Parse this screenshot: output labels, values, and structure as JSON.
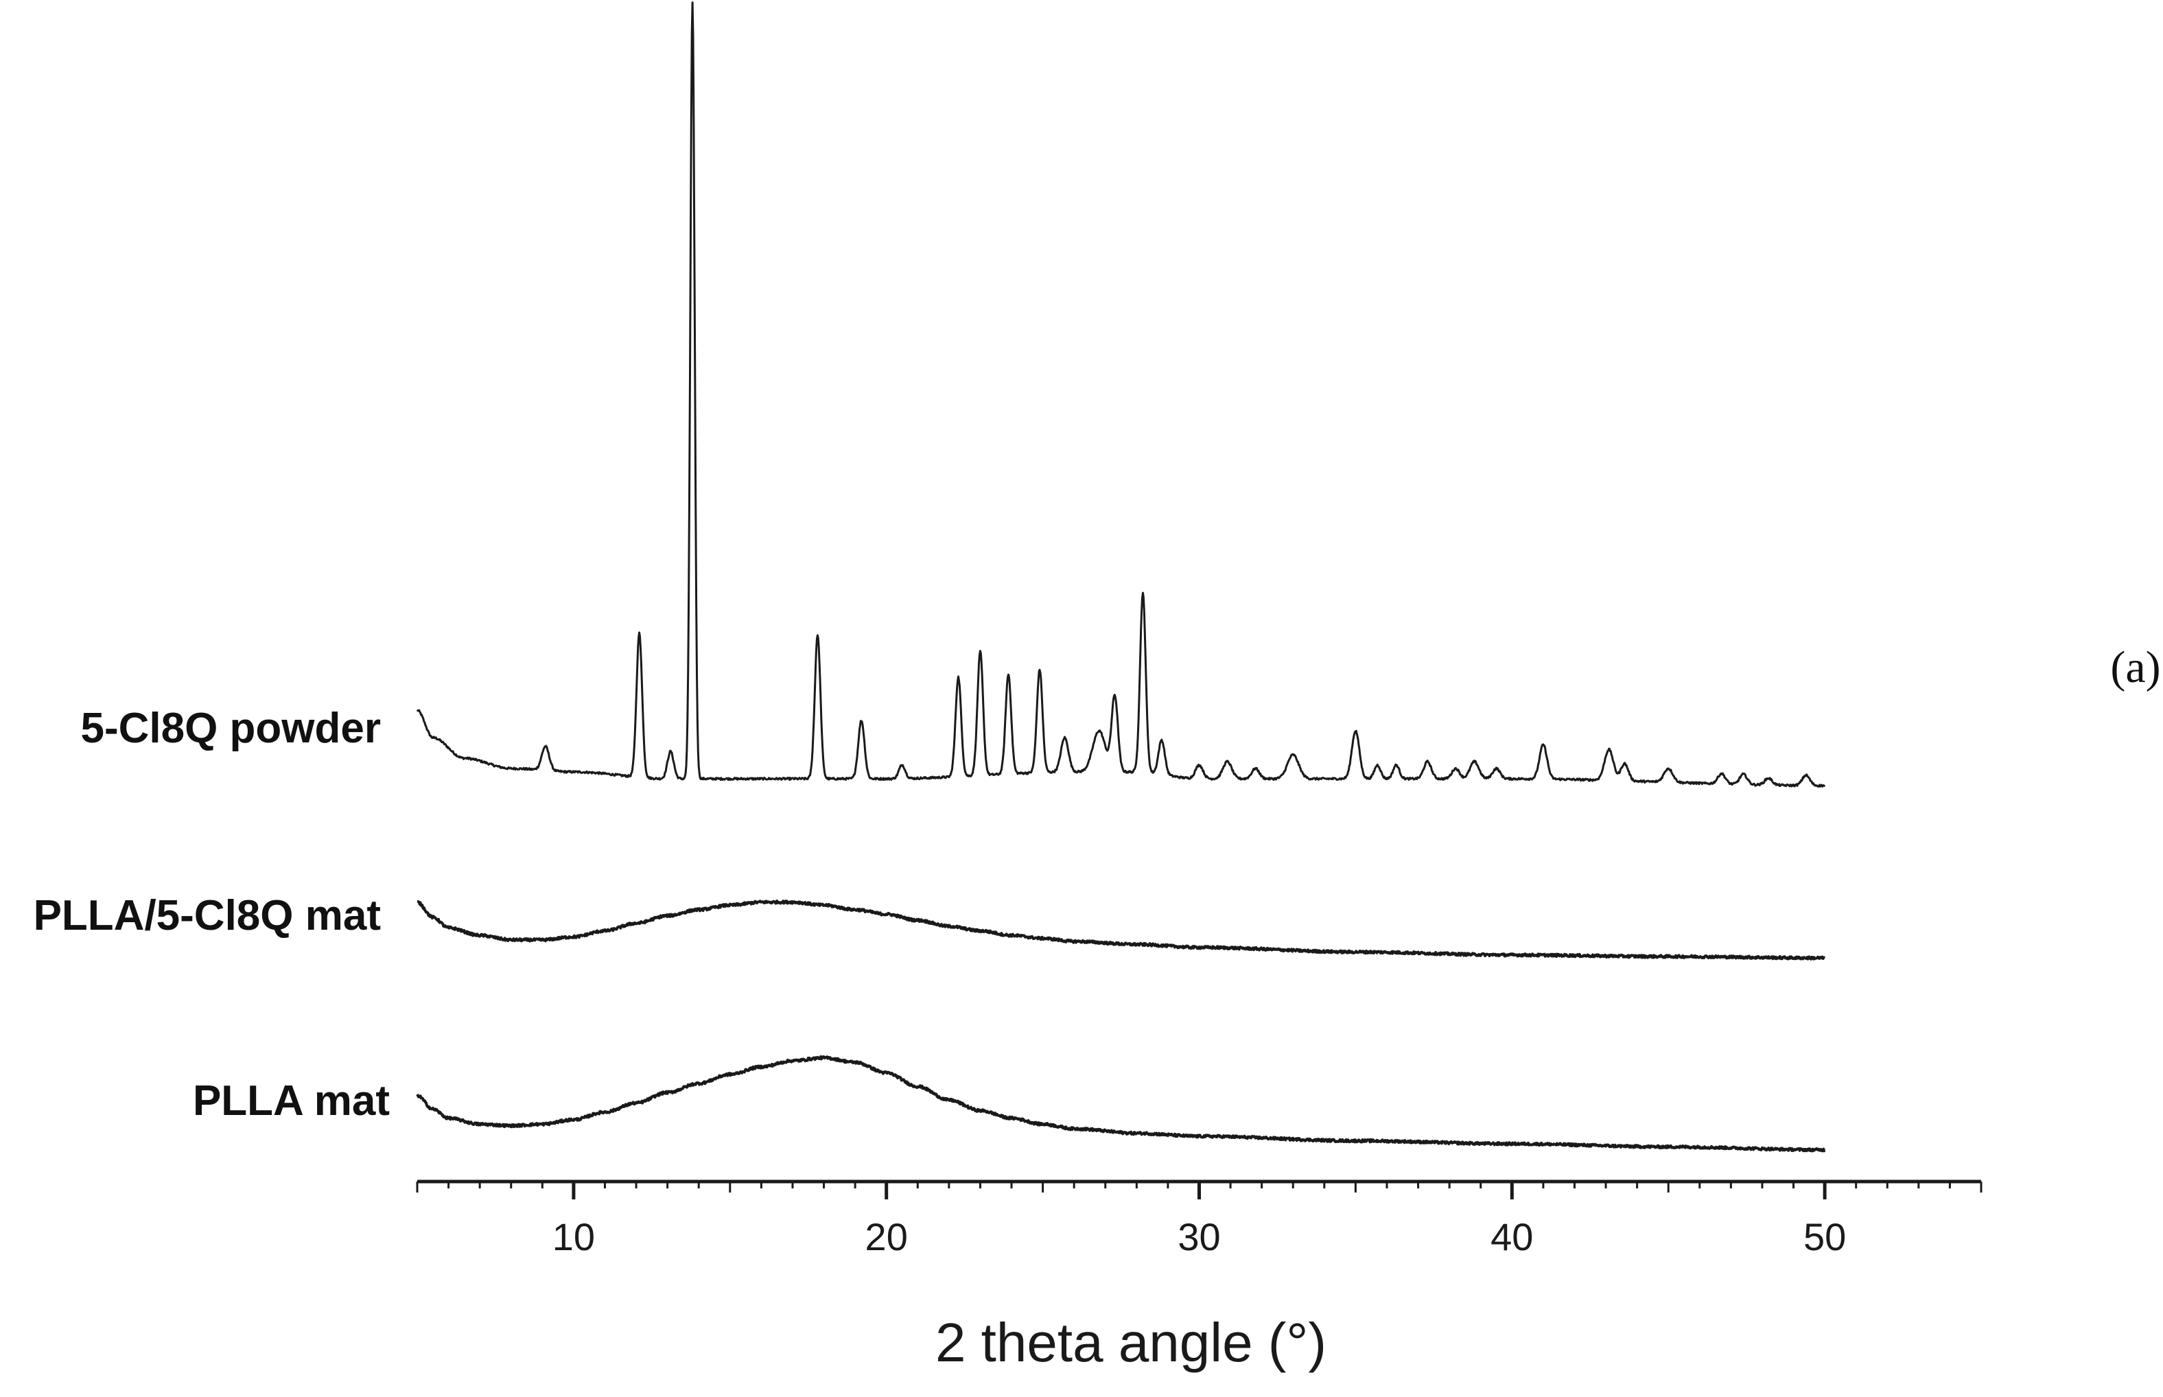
{
  "chart_data": {
    "type": "line",
    "panel_label": "(a)",
    "xlabel": "2 theta angle (°)",
    "xlim": [
      5,
      55
    ],
    "xticks": [
      10,
      20,
      30,
      40,
      50
    ],
    "grid": false,
    "y_axis_shown": false,
    "y_scale": "relative intensity (stacked, arbitrary units)",
    "series": [
      {
        "name": "5-Cl8Q powder",
        "x_range": [
          5,
          50
        ],
        "baseline": [
          [
            5,
            0.2
          ],
          [
            5.5,
            0.12
          ],
          [
            6.5,
            0.06
          ],
          [
            8,
            0.03
          ],
          [
            10,
            0.02
          ],
          [
            13,
            0.0
          ],
          [
            20,
            0.0
          ],
          [
            26,
            0.02
          ],
          [
            28,
            0.02
          ],
          [
            30,
            0.0
          ],
          [
            40,
            0.0
          ],
          [
            50,
            -0.02
          ]
        ],
        "peaks": [
          {
            "x": 9.1,
            "h": 0.07,
            "w": 0.12
          },
          {
            "x": 12.1,
            "h": 0.42,
            "w": 0.09
          },
          {
            "x": 13.1,
            "h": 0.08,
            "w": 0.1
          },
          {
            "x": 13.8,
            "h": 2.26,
            "w": 0.07
          },
          {
            "x": 17.8,
            "h": 0.42,
            "w": 0.09
          },
          {
            "x": 19.2,
            "h": 0.17,
            "w": 0.1
          },
          {
            "x": 20.5,
            "h": 0.04,
            "w": 0.1
          },
          {
            "x": 22.3,
            "h": 0.29,
            "w": 0.09
          },
          {
            "x": 23.0,
            "h": 0.36,
            "w": 0.09
          },
          {
            "x": 23.9,
            "h": 0.29,
            "w": 0.09
          },
          {
            "x": 24.9,
            "h": 0.3,
            "w": 0.09
          },
          {
            "x": 25.7,
            "h": 0.1,
            "w": 0.12
          },
          {
            "x": 26.8,
            "h": 0.12,
            "w": 0.2
          },
          {
            "x": 27.3,
            "h": 0.22,
            "w": 0.1
          },
          {
            "x": 28.2,
            "h": 0.52,
            "w": 0.09
          },
          {
            "x": 28.8,
            "h": 0.1,
            "w": 0.1
          },
          {
            "x": 30.0,
            "h": 0.04,
            "w": 0.12
          },
          {
            "x": 30.9,
            "h": 0.05,
            "w": 0.14
          },
          {
            "x": 31.8,
            "h": 0.03,
            "w": 0.12
          },
          {
            "x": 33.0,
            "h": 0.07,
            "w": 0.18
          },
          {
            "x": 35.0,
            "h": 0.14,
            "w": 0.12
          },
          {
            "x": 35.7,
            "h": 0.04,
            "w": 0.1
          },
          {
            "x": 36.3,
            "h": 0.04,
            "w": 0.1
          },
          {
            "x": 37.3,
            "h": 0.05,
            "w": 0.12
          },
          {
            "x": 38.2,
            "h": 0.03,
            "w": 0.12
          },
          {
            "x": 38.8,
            "h": 0.05,
            "w": 0.14
          },
          {
            "x": 39.5,
            "h": 0.03,
            "w": 0.12
          },
          {
            "x": 41.0,
            "h": 0.1,
            "w": 0.12
          },
          {
            "x": 43.1,
            "h": 0.09,
            "w": 0.14
          },
          {
            "x": 43.6,
            "h": 0.05,
            "w": 0.12
          },
          {
            "x": 45.0,
            "h": 0.04,
            "w": 0.14
          },
          {
            "x": 46.7,
            "h": 0.03,
            "w": 0.12
          },
          {
            "x": 47.4,
            "h": 0.03,
            "w": 0.12
          },
          {
            "x": 48.2,
            "h": 0.02,
            "w": 0.12
          },
          {
            "x": 49.4,
            "h": 0.03,
            "w": 0.12
          }
        ]
      },
      {
        "name": "PLLA/5-Cl8Q mat",
        "x_range": [
          5,
          50
        ],
        "points": [
          [
            5,
            0.26
          ],
          [
            5.5,
            0.16
          ],
          [
            6,
            0.09
          ],
          [
            7,
            0.04
          ],
          [
            8,
            0.01
          ],
          [
            9,
            0.01
          ],
          [
            10,
            0.03
          ],
          [
            11,
            0.07
          ],
          [
            12,
            0.12
          ],
          [
            13,
            0.17
          ],
          [
            14,
            0.21
          ],
          [
            15,
            0.24
          ],
          [
            16,
            0.26
          ],
          [
            17,
            0.26
          ],
          [
            18,
            0.24
          ],
          [
            19,
            0.21
          ],
          [
            20,
            0.18
          ],
          [
            21,
            0.14
          ],
          [
            22,
            0.1
          ],
          [
            23,
            0.07
          ],
          [
            24,
            0.04
          ],
          [
            25,
            0.02
          ],
          [
            26,
            0.0
          ],
          [
            28,
            -0.02
          ],
          [
            30,
            -0.04
          ],
          [
            35,
            -0.07
          ],
          [
            40,
            -0.09
          ],
          [
            45,
            -0.1
          ],
          [
            50,
            -0.11
          ]
        ]
      },
      {
        "name": "PLLA mat",
        "x_range": [
          5,
          50
        ],
        "points": [
          [
            5,
            0.22
          ],
          [
            5.5,
            0.13
          ],
          [
            6,
            0.07
          ],
          [
            7,
            0.03
          ],
          [
            8,
            0.02
          ],
          [
            9,
            0.03
          ],
          [
            10,
            0.06
          ],
          [
            11,
            0.11
          ],
          [
            12,
            0.17
          ],
          [
            13,
            0.24
          ],
          [
            14,
            0.3
          ],
          [
            15,
            0.36
          ],
          [
            16,
            0.41
          ],
          [
            17,
            0.45
          ],
          [
            18,
            0.47
          ],
          [
            19,
            0.44
          ],
          [
            20,
            0.37
          ],
          [
            21,
            0.28
          ],
          [
            22,
            0.19
          ],
          [
            23,
            0.12
          ],
          [
            24,
            0.07
          ],
          [
            25,
            0.03
          ],
          [
            26,
            0.0
          ],
          [
            28,
            -0.03
          ],
          [
            30,
            -0.05
          ],
          [
            35,
            -0.08
          ],
          [
            40,
            -0.1
          ],
          [
            45,
            -0.12
          ],
          [
            50,
            -0.14
          ]
        ]
      }
    ]
  }
}
